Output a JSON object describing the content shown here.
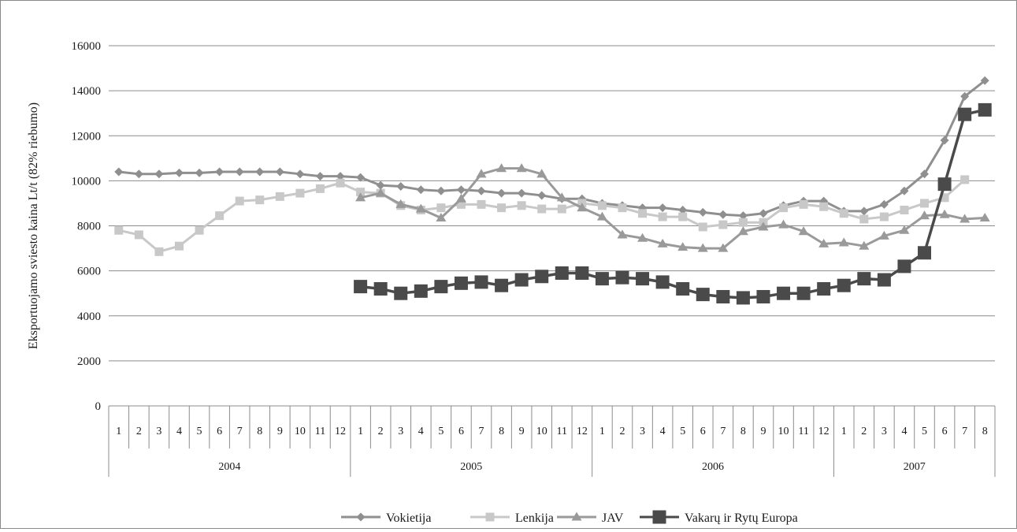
{
  "chart_data": {
    "type": "line",
    "title": "",
    "ylabel": "Eksportuojamo sviesto kaina Lt/t (82% riebumo)",
    "xlabel": "",
    "ylim": [
      0,
      16000
    ],
    "y_ticks": [
      "0",
      "2000",
      "4000",
      "6000",
      "8000",
      "10000",
      "12000",
      "14000",
      "16000"
    ],
    "grid": "horizontal",
    "legend_position": "bottom",
    "categories": [
      "1",
      "2",
      "3",
      "4",
      "5",
      "6",
      "7",
      "8",
      "9",
      "10",
      "11",
      "12",
      "1",
      "2",
      "3",
      "4",
      "5",
      "6",
      "7",
      "8",
      "9",
      "10",
      "11",
      "12",
      "1",
      "2",
      "3",
      "4",
      "5",
      "6",
      "7",
      "8",
      "9",
      "10",
      "11",
      "12",
      "1",
      "2",
      "3",
      "4",
      "5",
      "6",
      "7",
      "8"
    ],
    "years": [
      {
        "label": "2004",
        "months": 12
      },
      {
        "label": "2005",
        "months": 12
      },
      {
        "label": "2006",
        "months": 12
      },
      {
        "label": "2007",
        "months": 8
      }
    ],
    "series": [
      {
        "name": "Vokietija",
        "color": "#8f8f8f",
        "marker": "diamond",
        "values": [
          10400,
          10300,
          10300,
          10350,
          10350,
          10400,
          10400,
          10400,
          10400,
          10300,
          10200,
          10200,
          10150,
          9800,
          9750,
          9600,
          9550,
          9600,
          9550,
          9450,
          9450,
          9350,
          9200,
          9200,
          9000,
          8900,
          8800,
          8800,
          8700,
          8600,
          8500,
          8450,
          8550,
          8900,
          9100,
          9100,
          8650,
          8650,
          8950,
          9550,
          10300,
          11800,
          13750,
          14450
        ]
      },
      {
        "name": "Lenkija",
        "color": "#c8c8c8",
        "marker": "square",
        "values": [
          7800,
          7600,
          6850,
          7100,
          7800,
          8450,
          9100,
          9150,
          9300,
          9450,
          9650,
          9900,
          9500,
          9450,
          8900,
          8700,
          8800,
          8950,
          8950,
          8800,
          8900,
          8750,
          8750,
          9000,
          8900,
          8800,
          8550,
          8400,
          8400,
          7950,
          8050,
          8150,
          8150,
          8800,
          8950,
          8850,
          8550,
          8300,
          8400,
          8700,
          9000,
          9250,
          10050,
          null
        ]
      },
      {
        "name": "JAV",
        "color": "#9a9a9a",
        "marker": "triangle",
        "values": [
          null,
          null,
          null,
          null,
          null,
          null,
          null,
          null,
          null,
          null,
          null,
          null,
          9250,
          9450,
          8950,
          8750,
          8350,
          9200,
          10300,
          10550,
          10550,
          10300,
          9250,
          8800,
          8400,
          7600,
          7450,
          7200,
          7050,
          7000,
          7000,
          7750,
          7950,
          8050,
          7750,
          7200,
          7250,
          7100,
          7550,
          7800,
          8450,
          8500,
          8300,
          8350
        ]
      },
      {
        "name": "Vakarų ir Rytų Europa",
        "color": "#4a4a4a",
        "marker": "bigsquare",
        "values": [
          null,
          null,
          null,
          null,
          null,
          null,
          null,
          null,
          null,
          null,
          null,
          null,
          5300,
          5200,
          5000,
          5100,
          5300,
          5450,
          5500,
          5350,
          5600,
          5750,
          5900,
          5900,
          5650,
          5700,
          5650,
          5500,
          5200,
          4950,
          4850,
          4800,
          4850,
          5000,
          5000,
          5200,
          5350,
          5650,
          5600,
          6200,
          6800,
          9850,
          12950,
          13150
        ]
      }
    ]
  }
}
